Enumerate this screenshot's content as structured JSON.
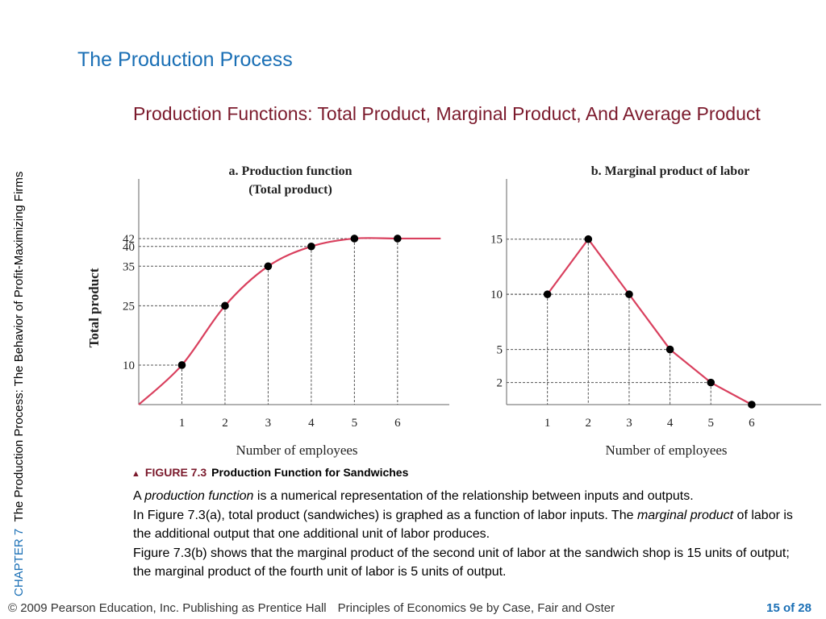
{
  "sidebar": {
    "chapter": "CHAPTER 7",
    "text": "The Production Process:  The Behavior of Profit-Maximizing Firms"
  },
  "title": "The Production Process",
  "subtitle": "Production Functions:  Total Product, Marginal Product, And Average Product",
  "colors": {
    "title": "#1a6fb5",
    "subtitle": "#7b1a2c",
    "curve": "#d9405e"
  },
  "chart_data": [
    {
      "type": "line",
      "title": "a. Production function",
      "subtitle": "(Total product)",
      "xlabel": "Number of employees",
      "ylabel": "Total product",
      "x": [
        0,
        1,
        2,
        3,
        4,
        5,
        6,
        7
      ],
      "y": [
        0,
        10,
        25,
        35,
        40,
        42,
        42,
        42
      ],
      "points_x": [
        1,
        2,
        3,
        4,
        5,
        6
      ],
      "points_y": [
        10,
        25,
        35,
        40,
        42,
        42
      ],
      "xticks": [
        "1",
        "2",
        "3",
        "4",
        "5",
        "6"
      ],
      "yticks": [
        "10",
        "25",
        "35",
        "40",
        "42"
      ],
      "ylim": [
        0,
        53
      ],
      "xlim": [
        0,
        7.2
      ]
    },
    {
      "type": "line",
      "title": "b. Marginal product of labor",
      "xlabel": "Number of employees",
      "x": [
        1,
        2,
        3,
        4,
        5,
        6
      ],
      "y": [
        10,
        15,
        10,
        5,
        2,
        0
      ],
      "xticks": [
        "1",
        "2",
        "3",
        "4",
        "5",
        "6"
      ],
      "yticks": [
        "2",
        "5",
        "10",
        "15"
      ],
      "ylim": [
        0,
        19
      ],
      "xlim": [
        0,
        7.7
      ]
    }
  ],
  "caption": {
    "figure": "FIGURE 7.3",
    "title": "Production Function for Sandwiches"
  },
  "body": {
    "p1_a": "A ",
    "p1_term": "production function",
    "p1_b": " is a numerical representation of the relationship between inputs and outputs.",
    "p2_a": "In Figure 7.3(a), total product (sandwiches) is graphed as a function of labor inputs. The ",
    "p2_term": "marginal product",
    "p2_b": " of labor is the additional output that one additional unit of labor produces.",
    "p3": "Figure 7.3(b) shows that the marginal product of the second unit of labor at the sandwich shop is 15 units of output; the marginal product of the fourth unit of labor is 5 units of output."
  },
  "footer": {
    "copyright": "© 2009 Pearson Education, Inc. Publishing as Prentice Hall",
    "book": "Principles of Economics 9e by Case, Fair and Oster",
    "page": "15 of 28"
  }
}
